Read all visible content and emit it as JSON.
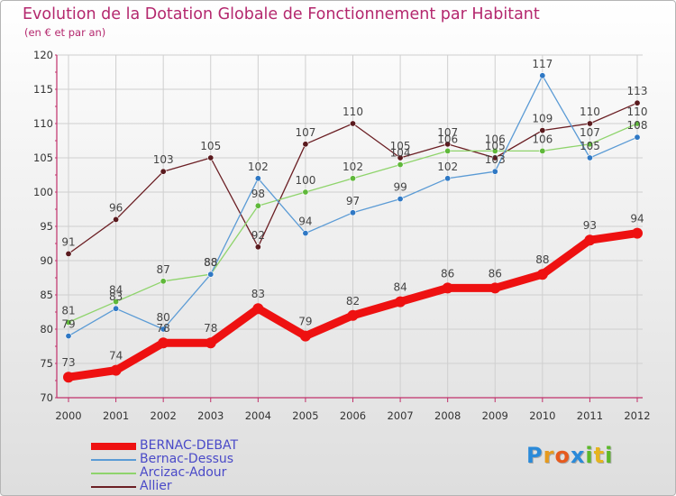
{
  "title": "Evolution de la Dotation Globale de Fonctionnement par Habitant",
  "subtitle": "(en € et par an)",
  "logo": {
    "letters": [
      "P",
      "r",
      "o",
      "x",
      "i",
      "t",
      "i"
    ],
    "colors": [
      "#2a8ad9",
      "#e69a1e",
      "#e65a1e",
      "#2a8ad9",
      "#5cb82a",
      "#e6b41e",
      "#5cb82a"
    ]
  },
  "chart_data": {
    "type": "line",
    "x": [
      "2000",
      "2001",
      "2002",
      "2003",
      "2004",
      "2005",
      "2006",
      "2007",
      "2008",
      "2009",
      "2010",
      "2011",
      "2012"
    ],
    "ylim": [
      70,
      120
    ],
    "yticks": [
      "70",
      "75",
      "80",
      "85",
      "90",
      "95",
      "100",
      "105",
      "110",
      "115",
      "120"
    ],
    "grid": true,
    "legend_position": "bottom-left",
    "series": [
      {
        "name": "Allier",
        "color": "#6b1f24",
        "values": [
          91,
          96,
          103,
          105,
          92,
          107,
          110,
          105,
          107,
          105,
          109,
          110,
          113
        ]
      },
      {
        "name": "Arcizac-Adour",
        "color": "#8fd46c",
        "values": [
          81,
          84,
          87,
          88,
          98,
          100,
          102,
          104,
          106,
          106,
          106,
          107,
          110
        ]
      },
      {
        "name": "Bernac-Dessus",
        "color": "#5b9bd5",
        "values": [
          79,
          83,
          80,
          88,
          102,
          94,
          97,
          99,
          102,
          103,
          117,
          105,
          108
        ]
      },
      {
        "name": "BERNAC-DEBAT",
        "color": "#ee1111",
        "values": [
          73,
          74,
          78,
          78,
          83,
          79,
          82,
          84,
          86,
          86,
          88,
          93,
          94
        ]
      }
    ],
    "legend_order": [
      "BERNAC-DEBAT",
      "Bernac-Dessus",
      "Arcizac-Adour",
      "Allier"
    ]
  }
}
